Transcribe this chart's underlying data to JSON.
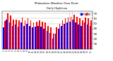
{
  "title": "Milwaukee Weather Dew Point",
  "subtitle": "Daily High/Low",
  "bar_width": 0.4,
  "high_color": "#ff0000",
  "low_color": "#0000ff",
  "background_color": "#ffffff",
  "ylim": [
    0,
    75
  ],
  "yticks": [
    10,
    20,
    30,
    40,
    50,
    60,
    70
  ],
  "categories": [
    "1",
    "2",
    "3",
    "4",
    "5",
    "6",
    "7",
    "8",
    "9",
    "10",
    "11",
    "12",
    "13",
    "14",
    "15",
    "16",
    "17",
    "18",
    "19",
    "20",
    "21",
    "22",
    "23",
    "24",
    "25",
    "26",
    "27",
    "28",
    "29",
    "30",
    "31"
  ],
  "high_values": [
    55,
    70,
    66,
    58,
    58,
    56,
    62,
    56,
    60,
    57,
    52,
    54,
    57,
    54,
    52,
    46,
    42,
    30,
    42,
    50,
    57,
    60,
    62,
    64,
    68,
    64,
    60,
    57,
    62,
    60,
    57
  ],
  "low_values": [
    42,
    58,
    52,
    46,
    48,
    44,
    52,
    46,
    50,
    46,
    42,
    44,
    46,
    44,
    40,
    36,
    32,
    20,
    30,
    40,
    46,
    50,
    52,
    54,
    58,
    52,
    48,
    46,
    52,
    48,
    46
  ],
  "legend_labels": [
    "Low",
    "High"
  ],
  "legend_colors": [
    "#0000ff",
    "#ff0000"
  ]
}
